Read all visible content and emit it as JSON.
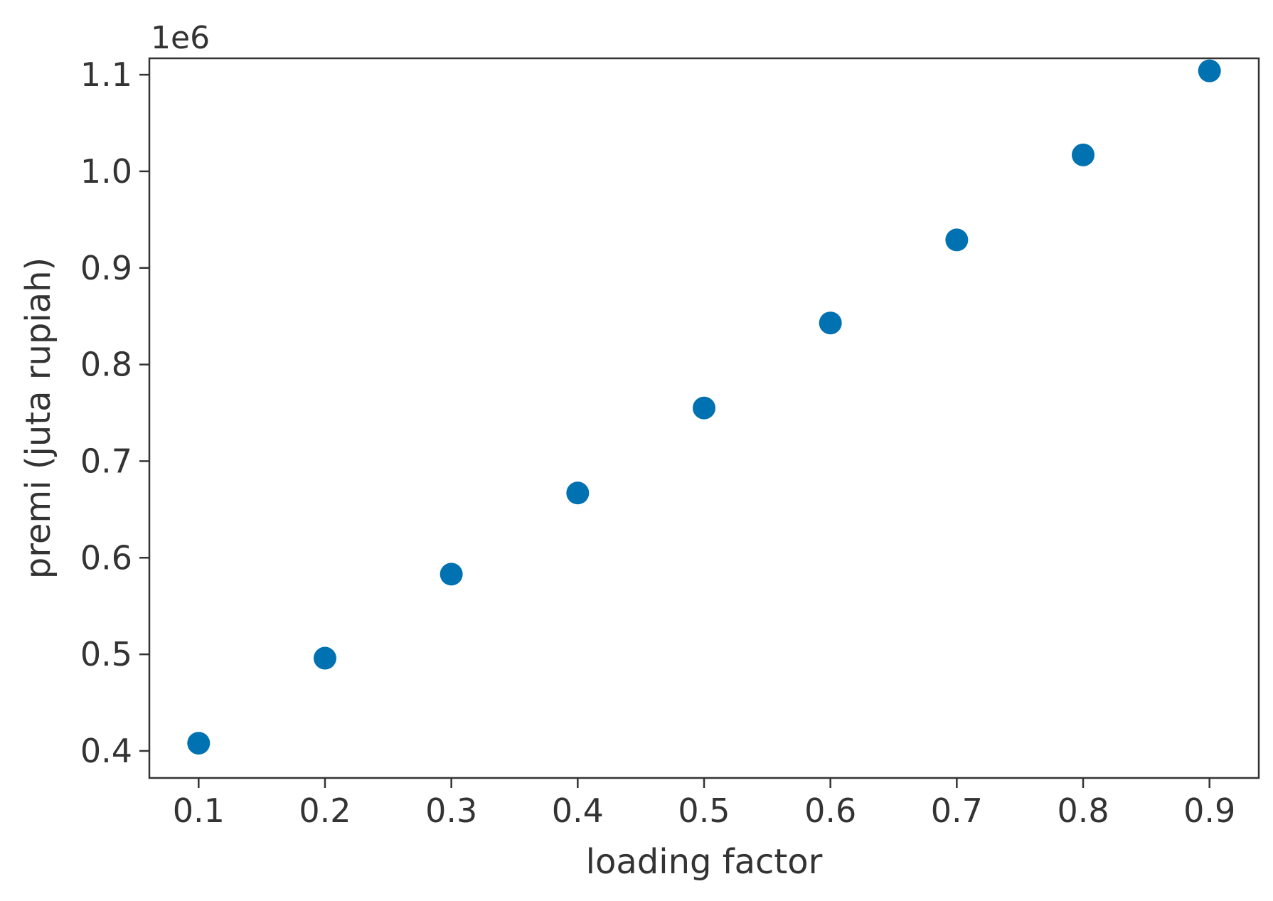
{
  "chart_data": {
    "type": "scatter",
    "title": "",
    "xlabel": "loading factor",
    "ylabel": "premi (juta rupiah)",
    "y_offset_label": "1e6",
    "xlim": [
      0.061,
      0.939
    ],
    "ylim": [
      0.372,
      1.117
    ],
    "x_ticks": [
      0.1,
      0.2,
      0.3,
      0.4,
      0.5,
      0.6,
      0.7,
      0.8,
      0.9
    ],
    "x_tick_labels": [
      "0.1",
      "0.2",
      "0.3",
      "0.4",
      "0.5",
      "0.6",
      "0.7",
      "0.8",
      "0.9"
    ],
    "y_ticks": [
      0.4,
      0.5,
      0.6,
      0.7,
      0.8,
      0.9,
      1.0,
      1.1
    ],
    "y_tick_labels": [
      "0.4",
      "0.5",
      "0.6",
      "0.7",
      "0.8",
      "0.9",
      "1.0",
      "1.1"
    ],
    "marker_color": "#0072b2",
    "grid": false,
    "series": [
      {
        "x": [
          0.1,
          0.2,
          0.3,
          0.4,
          0.5,
          0.6,
          0.7,
          0.8,
          0.9
        ],
        "y": [
          0.408,
          0.496,
          0.583,
          0.667,
          0.755,
          0.843,
          0.929,
          1.017,
          1.104
        ]
      }
    ]
  }
}
